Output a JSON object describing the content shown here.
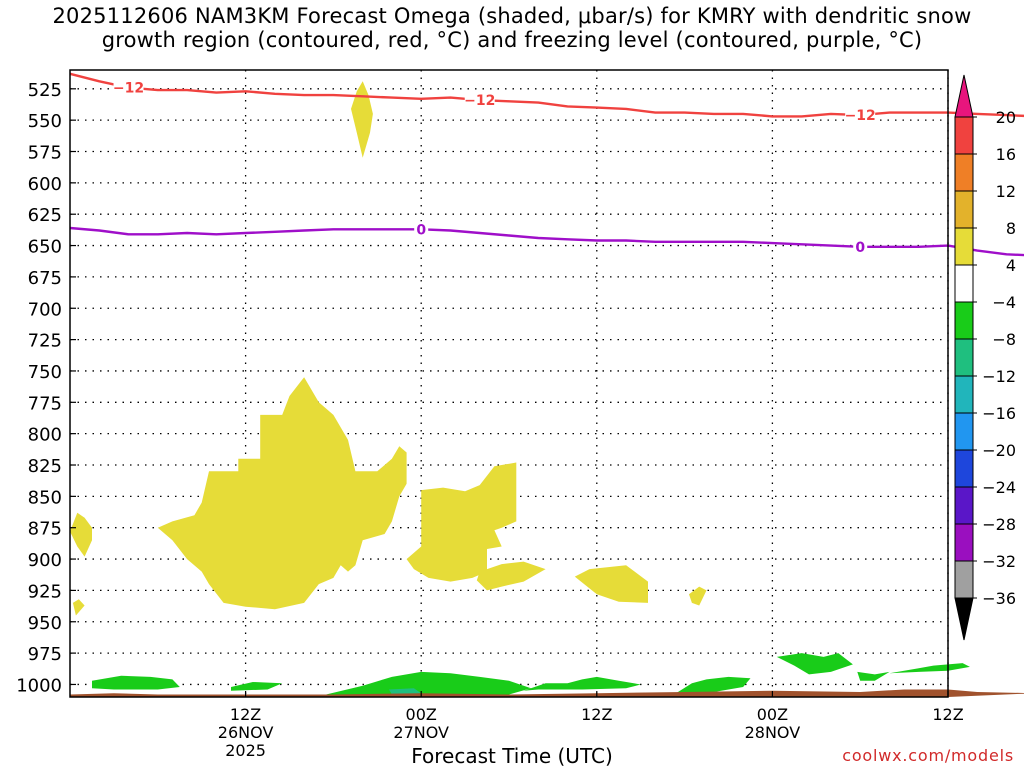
{
  "title": {
    "line1": "2025112606 NAM3KM Forecast Omega (shaded, μbar/s) for KMRY with dendritic snow",
    "line2": "growth region (contoured, red, °C) and freezing level (contoured, purple, °C)"
  },
  "credit": "coolwx.com/models",
  "chart_data": {
    "type": "time-height cross section",
    "xlabel": "Forecast Time (UTC)",
    "x_range_hours": [
      -6,
      54
    ],
    "y_axis": {
      "reversed": true,
      "range_mb": [
        510,
        1010
      ],
      "ticks": [
        525,
        550,
        575,
        600,
        625,
        650,
        675,
        700,
        725,
        750,
        775,
        800,
        825,
        850,
        875,
        900,
        925,
        950,
        975,
        1000
      ]
    },
    "x_ticks": [
      {
        "hour": 6,
        "lines": [
          "12Z",
          "26NOV",
          "2025"
        ]
      },
      {
        "hour": 18,
        "lines": [
          "00Z",
          "27NOV"
        ]
      },
      {
        "hour": 30,
        "lines": [
          "12Z"
        ]
      },
      {
        "hour": 42,
        "lines": [
          "00Z",
          "28NOV"
        ]
      },
      {
        "hour": 54,
        "lines": [
          "12Z"
        ]
      }
    ],
    "grid": true,
    "colorbar": {
      "labels": [
        "20",
        "16",
        "12",
        "8",
        "4",
        "−4",
        "−8",
        "−12",
        "−16",
        "−20",
        "−24",
        "−28",
        "−32",
        "−36"
      ],
      "colors": [
        "#e8157d",
        "#f0423f",
        "#ef7f26",
        "#e3b22b",
        "#e6dc38",
        "#ffffff",
        "#19cc19",
        "#1fbf7f",
        "#21b5bb",
        "#2196f0",
        "#1e46dc",
        "#5a16c8",
        "#9a0fbf",
        "#a0a0a0",
        "#000000"
      ]
    },
    "contours": [
      {
        "name": "dendritic -12C",
        "color": "#f0423f",
        "label": "−12",
        "label_at_hours": [
          -2,
          22,
          48
        ],
        "points": [
          [
            -6,
            513
          ],
          [
            -4,
            519
          ],
          [
            -2,
            524
          ],
          [
            0,
            526
          ],
          [
            2,
            526
          ],
          [
            4,
            528
          ],
          [
            6,
            527
          ],
          [
            8,
            529
          ],
          [
            10,
            530
          ],
          [
            12,
            530
          ],
          [
            14,
            531
          ],
          [
            16,
            532
          ],
          [
            18,
            533
          ],
          [
            20,
            532
          ],
          [
            22,
            534
          ],
          [
            24,
            535
          ],
          [
            26,
            536
          ],
          [
            28,
            539
          ],
          [
            30,
            540
          ],
          [
            32,
            541
          ],
          [
            34,
            544
          ],
          [
            36,
            544
          ],
          [
            38,
            545
          ],
          [
            40,
            545
          ],
          [
            42,
            547
          ],
          [
            44,
            547
          ],
          [
            46,
            545
          ],
          [
            48,
            546
          ],
          [
            50,
            544
          ],
          [
            52,
            544
          ],
          [
            54,
            544
          ],
          [
            56,
            545
          ],
          [
            58,
            546
          ],
          [
            60,
            547
          ]
        ]
      },
      {
        "name": "freezing level 0C",
        "color": "#9f0fc9",
        "label": "0",
        "label_at_hours": [
          18,
          48
        ],
        "points": [
          [
            -6,
            636
          ],
          [
            -4,
            638
          ],
          [
            -2,
            641
          ],
          [
            0,
            641
          ],
          [
            2,
            640
          ],
          [
            4,
            641
          ],
          [
            6,
            640
          ],
          [
            8,
            639
          ],
          [
            10,
            638
          ],
          [
            12,
            637
          ],
          [
            14,
            637
          ],
          [
            16,
            637
          ],
          [
            18,
            637
          ],
          [
            20,
            638
          ],
          [
            22,
            640
          ],
          [
            24,
            642
          ],
          [
            26,
            644
          ],
          [
            28,
            645
          ],
          [
            30,
            646
          ],
          [
            32,
            646
          ],
          [
            34,
            647
          ],
          [
            36,
            647
          ],
          [
            38,
            647
          ],
          [
            40,
            647
          ],
          [
            42,
            648
          ],
          [
            44,
            649
          ],
          [
            46,
            650
          ],
          [
            48,
            651
          ],
          [
            50,
            651
          ],
          [
            52,
            651
          ],
          [
            54,
            650
          ],
          [
            56,
            654
          ],
          [
            58,
            657
          ],
          [
            60,
            658
          ]
        ]
      }
    ],
    "shaded_regions": [
      {
        "omega_class": "4 to 8",
        "color": "#e6dc38",
        "points": [
          [
            3.5,
            830
          ],
          [
            5.5,
            830
          ],
          [
            5.5,
            820
          ],
          [
            7,
            820
          ],
          [
            7,
            785
          ],
          [
            8.5,
            785
          ],
          [
            9,
            770
          ],
          [
            10,
            755
          ],
          [
            11,
            775
          ],
          [
            12,
            785
          ],
          [
            13,
            805
          ],
          [
            13.5,
            830
          ],
          [
            15,
            830
          ],
          [
            16,
            820
          ],
          [
            16.5,
            810
          ],
          [
            17,
            815
          ],
          [
            17,
            840
          ],
          [
            16.5,
            850
          ],
          [
            16,
            870
          ],
          [
            15.5,
            880
          ],
          [
            14,
            885
          ],
          [
            13.5,
            905
          ],
          [
            13,
            910
          ],
          [
            12.5,
            905
          ],
          [
            12,
            915
          ],
          [
            11,
            920
          ],
          [
            10,
            935
          ],
          [
            8,
            940
          ],
          [
            6,
            938
          ],
          [
            4.5,
            935
          ],
          [
            3.5,
            920
          ],
          [
            3,
            910
          ],
          [
            2,
            900
          ],
          [
            1,
            885
          ],
          [
            0,
            875
          ],
          [
            1,
            870
          ],
          [
            2.5,
            865
          ],
          [
            3,
            855
          ]
        ]
      },
      {
        "omega_class": "4 to 8",
        "color": "#e6dc38",
        "points": [
          [
            -5.5,
            863
          ],
          [
            -5,
            867
          ],
          [
            -4.5,
            875
          ],
          [
            -4.5,
            885
          ],
          [
            -5,
            898
          ],
          [
            -5.5,
            890
          ],
          [
            -6,
            878
          ]
        ]
      },
      {
        "omega_class": "4 to 8",
        "color": "#e6dc38",
        "points": [
          [
            -5.8,
            935
          ],
          [
            -5.4,
            932
          ],
          [
            -5,
            937
          ],
          [
            -5.6,
            945
          ]
        ]
      },
      {
        "omega_class": "4 to 8",
        "color": "#e6dc38",
        "points": [
          [
            18,
            845
          ],
          [
            19.5,
            843
          ],
          [
            21,
            846
          ],
          [
            22,
            841
          ],
          [
            23,
            826
          ],
          [
            24.5,
            823
          ],
          [
            24.5,
            870
          ],
          [
            23.5,
            875
          ],
          [
            23,
            877
          ],
          [
            23.5,
            890
          ],
          [
            22.5,
            892
          ],
          [
            22.5,
            910
          ],
          [
            21.5,
            915
          ],
          [
            20,
            918
          ],
          [
            18.5,
            915
          ],
          [
            17.5,
            908
          ],
          [
            17,
            900
          ],
          [
            18,
            890
          ]
        ]
      },
      {
        "omega_class": "4 to 8",
        "color": "#e6dc38",
        "points": [
          [
            21.8,
            917
          ],
          [
            22,
            910
          ],
          [
            23.5,
            904
          ],
          [
            25,
            902
          ],
          [
            26.5,
            908
          ],
          [
            25,
            918
          ],
          [
            23.5,
            922
          ],
          [
            22.5,
            925
          ]
        ]
      },
      {
        "omega_class": "4 to 8",
        "color": "#e6dc38",
        "points": [
          [
            28.5,
            914
          ],
          [
            29.5,
            908
          ],
          [
            32,
            905
          ],
          [
            33.5,
            918
          ],
          [
            33.5,
            935
          ],
          [
            31.5,
            934
          ],
          [
            30,
            928
          ]
        ]
      },
      {
        "omega_class": "4 to 8",
        "color": "#e6dc38",
        "points": [
          [
            36.3,
            928
          ],
          [
            37,
            922
          ],
          [
            37.5,
            925
          ],
          [
            37,
            937
          ],
          [
            36.5,
            935
          ]
        ]
      },
      {
        "omega_class": "4 to 8",
        "color": "#e6dc38",
        "points": [
          [
            13.2,
            541
          ],
          [
            13.6,
            527
          ],
          [
            14,
            519
          ],
          [
            14.4,
            530
          ],
          [
            14.7,
            545
          ],
          [
            14.5,
            560
          ],
          [
            14,
            580
          ],
          [
            13.6,
            560
          ]
        ]
      },
      {
        "omega_class": "-4 to -8",
        "color": "#19cc19",
        "points": [
          [
            -4.5,
            997
          ],
          [
            -2.5,
            993
          ],
          [
            -0.5,
            994
          ],
          [
            1,
            996
          ],
          [
            1.5,
            1002
          ],
          [
            0,
            1004
          ],
          [
            -3,
            1004
          ],
          [
            -4.5,
            1003
          ]
        ]
      },
      {
        "omega_class": "-4 to -8",
        "color": "#19cc19",
        "points": [
          [
            5,
            1002
          ],
          [
            6.5,
            998
          ],
          [
            8.5,
            999
          ],
          [
            7.5,
            1004
          ],
          [
            5,
            1005
          ]
        ]
      },
      {
        "omega_class": "-4 to -8",
        "color": "#19cc19",
        "points": [
          [
            11.5,
            1008
          ],
          [
            14,
            1001
          ],
          [
            16,
            994
          ],
          [
            18,
            990
          ],
          [
            20,
            991
          ],
          [
            22,
            994
          ],
          [
            24,
            997
          ],
          [
            25.5,
            1003
          ],
          [
            24,
            1008
          ],
          [
            18,
            1010
          ],
          [
            12,
            1010
          ]
        ]
      },
      {
        "omega_class": "-4 to -8",
        "color": "#19cc19",
        "points": [
          [
            25,
            1005
          ],
          [
            26.5,
            999
          ],
          [
            28,
            999
          ],
          [
            29,
            996
          ],
          [
            30,
            994
          ],
          [
            31.5,
            997
          ],
          [
            33,
            1000
          ],
          [
            32,
            1003
          ],
          [
            29,
            1004
          ],
          [
            26,
            1004
          ]
        ]
      },
      {
        "omega_class": "-4 to -8",
        "color": "#19cc19",
        "points": [
          [
            35,
            1010
          ],
          [
            36.5,
            999
          ],
          [
            37.5,
            996
          ],
          [
            39,
            994
          ],
          [
            40.5,
            995
          ],
          [
            40,
            1002
          ],
          [
            38.5,
            1005
          ],
          [
            37,
            1008
          ]
        ]
      },
      {
        "omega_class": "-4 to -8",
        "color": "#19cc19",
        "points": [
          [
            42.3,
            978
          ],
          [
            44,
            975
          ],
          [
            45.5,
            978
          ],
          [
            46.5,
            975
          ],
          [
            47.5,
            984
          ],
          [
            46,
            990
          ],
          [
            44.5,
            992
          ],
          [
            43.5,
            985
          ]
        ]
      },
      {
        "omega_class": "-4 to -8",
        "color": "#19cc19",
        "points": [
          [
            47.8,
            990
          ],
          [
            49,
            992
          ],
          [
            50,
            990
          ],
          [
            49,
            997
          ],
          [
            48,
            997
          ]
        ]
      },
      {
        "omega_class": "-4 to -8",
        "color": "#19cc19",
        "points": [
          [
            50,
            991
          ],
          [
            52,
            987
          ],
          [
            53,
            985
          ],
          [
            55,
            983
          ],
          [
            55.5,
            986
          ],
          [
            54,
            989
          ],
          [
            52,
            990
          ]
        ]
      },
      {
        "omega_class": "-8 to -12",
        "color": "#1fbf7f",
        "points": [
          [
            15.8,
            1004
          ],
          [
            17.5,
            1003
          ],
          [
            18,
            1007
          ],
          [
            16,
            1008
          ]
        ]
      }
    ],
    "terrain": {
      "color": "#a0522d",
      "points": [
        [
          -6,
          1008
        ],
        [
          -3,
          1007
        ],
        [
          0,
          1008
        ],
        [
          6,
          1008
        ],
        [
          12,
          1008
        ],
        [
          18,
          1007
        ],
        [
          24,
          1008
        ],
        [
          30,
          1007
        ],
        [
          36,
          1006
        ],
        [
          42,
          1005
        ],
        [
          48,
          1006
        ],
        [
          51,
          1004
        ],
        [
          54,
          1004
        ],
        [
          56,
          1006
        ],
        [
          60,
          1007
        ]
      ]
    }
  }
}
